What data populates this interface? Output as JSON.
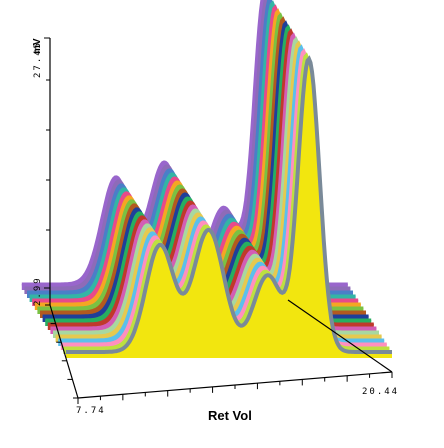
{
  "chart_data": {
    "type": "line",
    "title": "",
    "xlabel": "Ret Vol",
    "ylabel": "mV",
    "x_tick_labels": [
      "7.74",
      "20.44"
    ],
    "y_tick_labels": [
      "27.45",
      "2.99"
    ],
    "xlim": [
      7.74,
      20.44
    ],
    "ylim": [
      2.99,
      27.45
    ],
    "series_count": 18,
    "series_colors": [
      "#9966cc",
      "#8e6bb8",
      "#4a7fc8",
      "#33b5a5",
      "#e84a8a",
      "#f5a623",
      "#7ac143",
      "#b35a1f",
      "#1f3f9a",
      "#27ae60",
      "#c0392b",
      "#d35db5",
      "#a8d8a0",
      "#e6c94f",
      "#5bc0eb",
      "#ff8fbf",
      "#bde040",
      "#f2e60f"
    ],
    "outline_color": "#7a8a99",
    "peaks": [
      {
        "x": 11.4,
        "y": 11.9
      },
      {
        "x": 13.3,
        "y": 13.2
      },
      {
        "x": 15.6,
        "y": 9.4
      },
      {
        "x": 17.2,
        "y": 27.45
      }
    ],
    "baseline": 2.99
  }
}
